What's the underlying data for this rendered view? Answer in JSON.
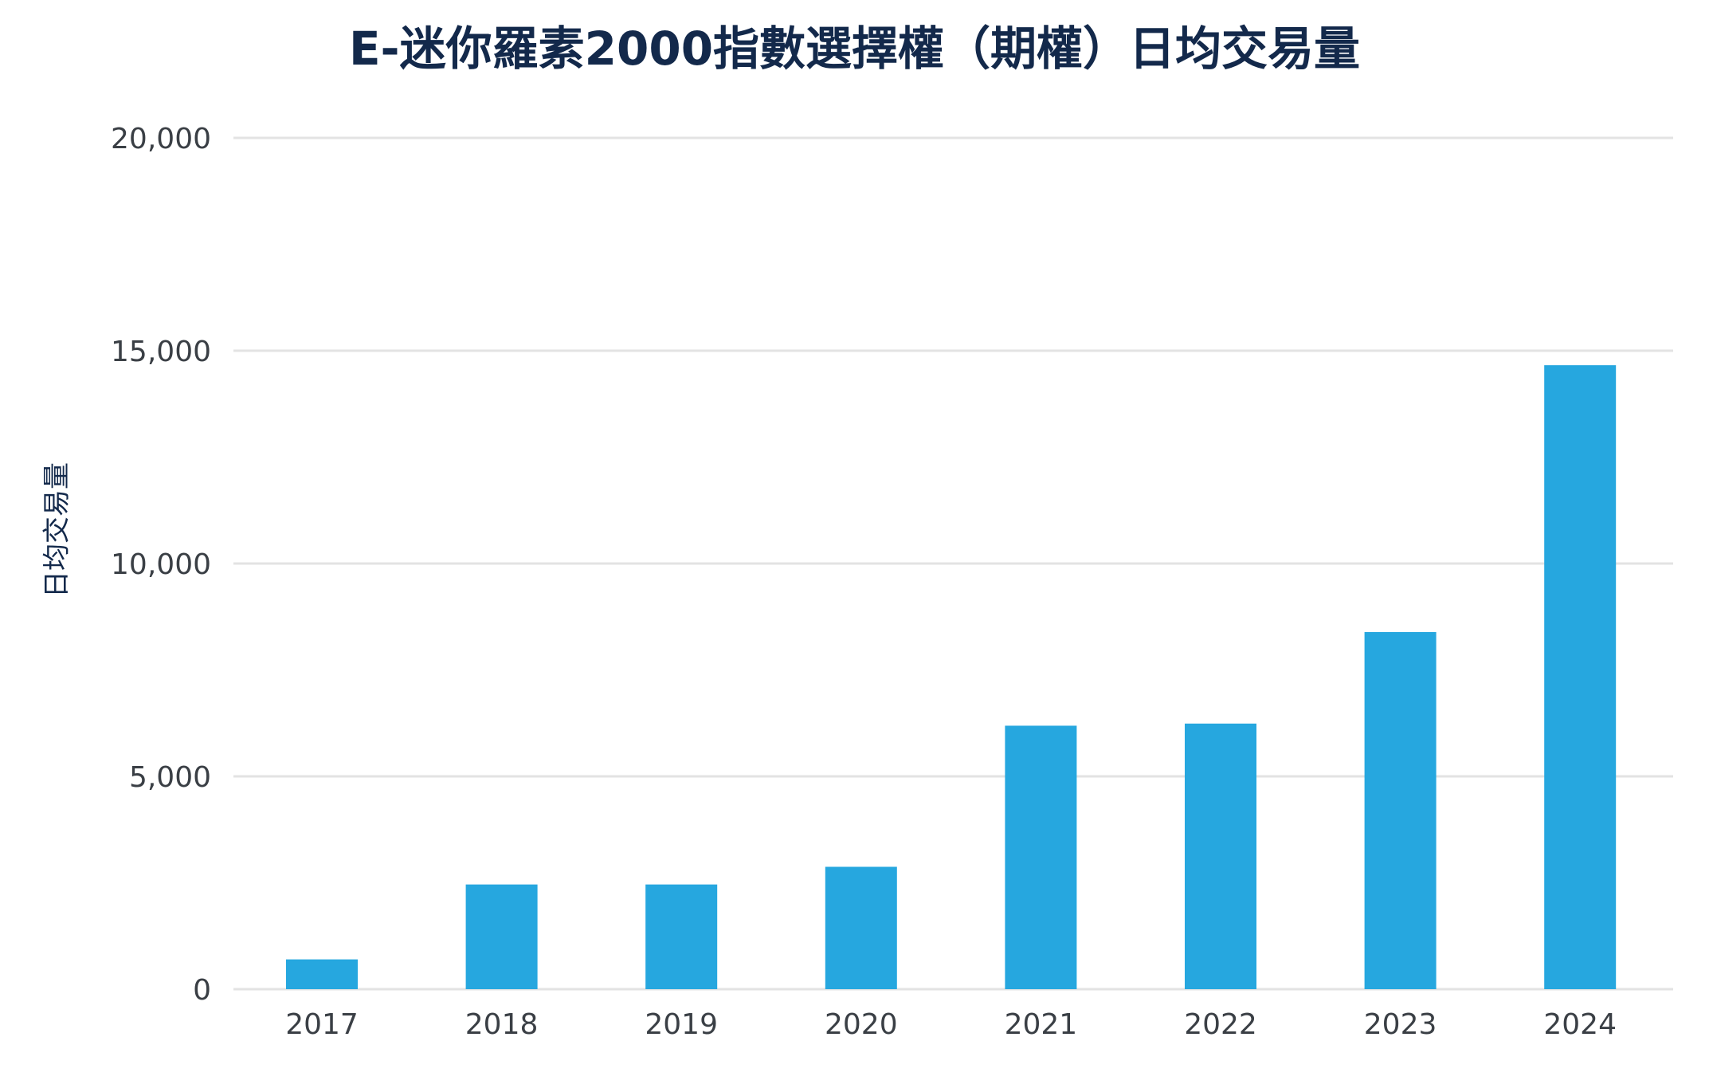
{
  "chart_data": {
    "type": "bar",
    "title": "E-迷你羅素2000指數選擇權（期權）日均交易量",
    "xlabel": "",
    "ylabel": "日均交易量",
    "categories": [
      "2017",
      "2018",
      "2019",
      "2020",
      "2021",
      "2022",
      "2023",
      "2024"
    ],
    "values": [
      700,
      2460,
      2460,
      2875,
      6190,
      6240,
      8390,
      14660
    ],
    "ylim": [
      0,
      20000
    ],
    "yticks": [
      0,
      5000,
      10000,
      15000,
      20000
    ],
    "ytick_labels": [
      "0",
      "5,000",
      "10,000",
      "15,000",
      "20,000"
    ],
    "grid": true,
    "legend": "none",
    "bar_color": "#26a7df",
    "grid_color": "#e3e3e3",
    "title_color": "#13294b"
  }
}
